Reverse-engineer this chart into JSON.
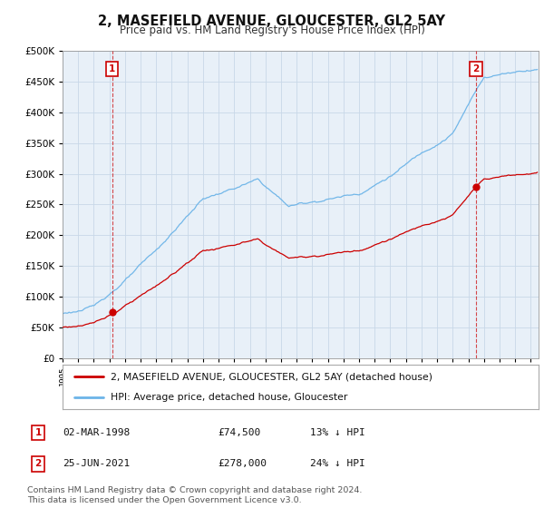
{
  "title": "2, MASEFIELD AVENUE, GLOUCESTER, GL2 5AY",
  "subtitle": "Price paid vs. HM Land Registry's House Price Index (HPI)",
  "ylim": [
    0,
    500000
  ],
  "yticks": [
    0,
    50000,
    100000,
    150000,
    200000,
    250000,
    300000,
    350000,
    400000,
    450000,
    500000
  ],
  "xlim_start": 1995.0,
  "xlim_end": 2025.5,
  "transaction1": {
    "date_num": 1998.17,
    "price": 74500,
    "label": "1"
  },
  "transaction2": {
    "date_num": 2021.48,
    "price": 278000,
    "label": "2"
  },
  "hpi_color": "#6cb4e8",
  "price_color": "#cc0000",
  "legend_label_red": "2, MASEFIELD AVENUE, GLOUCESTER, GL2 5AY (detached house)",
  "legend_label_blue": "HPI: Average price, detached house, Gloucester",
  "table_row1": [
    "1",
    "02-MAR-1998",
    "£74,500",
    "13% ↓ HPI"
  ],
  "table_row2": [
    "2",
    "25-JUN-2021",
    "£278,000",
    "24% ↓ HPI"
  ],
  "footnote": "Contains HM Land Registry data © Crown copyright and database right 2024.\nThis data is licensed under the Open Government Licence v3.0.",
  "background_color": "#ffffff",
  "plot_bg_color": "#e8f0f8",
  "grid_color": "#c8d8e8"
}
